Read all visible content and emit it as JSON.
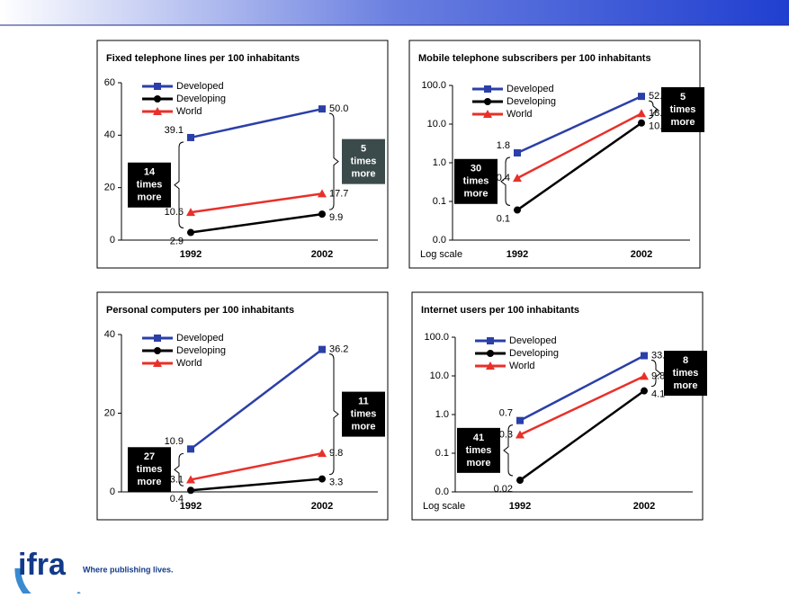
{
  "chart_data": [
    {
      "type": "line",
      "title": "Fixed telephone lines per 100 inhabitants",
      "categories": [
        "1992",
        "2002"
      ],
      "series": [
        {
          "name": "Developed",
          "color": "#2b3fa8",
          "marker": "square",
          "values": [
            39.1,
            50.0
          ],
          "value_labels": [
            "39.1",
            "50.0"
          ]
        },
        {
          "name": "Developing",
          "color": "#000000",
          "marker": "circle",
          "values": [
            2.9,
            9.9
          ],
          "value_labels": [
            "2.9",
            "9.9"
          ]
        },
        {
          "name": "World",
          "color": "#e8302a",
          "marker": "triangle",
          "values": [
            10.6,
            17.7
          ],
          "value_labels": [
            "10.6",
            "17.7"
          ]
        }
      ],
      "ylim": [
        0,
        60
      ],
      "yticks": [
        0,
        20,
        40,
        60
      ],
      "log_scale": false,
      "annotations": [
        {
          "lines": [
            "14",
            "times",
            "more"
          ],
          "color": "#000000"
        },
        {
          "lines": [
            "5",
            "times",
            "more"
          ],
          "color": "#3b4a4a"
        }
      ]
    },
    {
      "type": "line",
      "title": "Mobile telephone subscribers per 100 inhabitants",
      "categories": [
        "1992",
        "2002"
      ],
      "series": [
        {
          "name": "Developed",
          "color": "#2b3fa8",
          "marker": "square",
          "values": [
            1.8,
            52.2
          ],
          "value_labels": [
            "1.8",
            "52.2"
          ]
        },
        {
          "name": "Developing",
          "color": "#000000",
          "marker": "circle",
          "values": [
            0.06,
            10.7
          ],
          "value_labels": [
            "0.1",
            "10.7"
          ]
        },
        {
          "name": "World",
          "color": "#e8302a",
          "marker": "triangle",
          "values": [
            0.4,
            18.7
          ],
          "value_labels": [
            "0.4",
            "18.7"
          ]
        }
      ],
      "ylim": [
        0.01,
        100
      ],
      "yticks": [
        {
          "value": 0.01,
          "label": "0.0"
        },
        0.1,
        {
          "value": 1,
          "label": "1.0"
        },
        {
          "value": 10,
          "label": "10.0"
        },
        {
          "value": 100,
          "label": "100.0"
        }
      ],
      "log_scale": true,
      "scale_note": "Log scale",
      "annotations": [
        {
          "lines": [
            "30",
            "times",
            "more"
          ],
          "color": "#000000"
        },
        {
          "lines": [
            "5",
            "times",
            "more"
          ],
          "color": "#000000"
        }
      ]
    },
    {
      "type": "line",
      "title": "Personal computers per 100 inhabitants",
      "categories": [
        "1992",
        "2002"
      ],
      "series": [
        {
          "name": "Developed",
          "color": "#2b3fa8",
          "marker": "square",
          "values": [
            10.9,
            36.2
          ],
          "value_labels": [
            "10.9",
            "36.2"
          ]
        },
        {
          "name": "Developing",
          "color": "#000000",
          "marker": "circle",
          "values": [
            0.4,
            3.3
          ],
          "value_labels": [
            "0.4",
            "3.3"
          ]
        },
        {
          "name": "World",
          "color": "#e8302a",
          "marker": "triangle",
          "values": [
            3.1,
            9.8
          ],
          "value_labels": [
            "3.1",
            "9.8"
          ]
        }
      ],
      "ylim": [
        0,
        40
      ],
      "yticks": [
        0,
        20,
        40
      ],
      "log_scale": false,
      "annotations": [
        {
          "lines": [
            "27",
            "times",
            "more"
          ],
          "color": "#000000"
        },
        {
          "lines": [
            "11",
            "times",
            "more"
          ],
          "color": "#000000"
        }
      ]
    },
    {
      "type": "line",
      "title": "Internet users per 100 inhabitants",
      "categories": [
        "1992",
        "2002"
      ],
      "series": [
        {
          "name": "Developed",
          "color": "#2b3fa8",
          "marker": "square",
          "values": [
            0.7,
            33.3
          ],
          "value_labels": [
            "0.7",
            "33.3"
          ]
        },
        {
          "name": "Developing",
          "color": "#000000",
          "marker": "circle",
          "values": [
            0.02,
            4.1
          ],
          "value_labels": [
            "0.02",
            "4.1"
          ]
        },
        {
          "name": "World",
          "color": "#e8302a",
          "marker": "triangle",
          "values": [
            0.3,
            9.8
          ],
          "value_labels": [
            "0.3",
            "9.8"
          ]
        }
      ],
      "ylim": [
        0.01,
        100
      ],
      "yticks": [
        {
          "value": 0.01,
          "label": "0.0"
        },
        0.1,
        {
          "value": 1,
          "label": "1.0"
        },
        {
          "value": 10,
          "label": "10.0"
        },
        {
          "value": 100,
          "label": "100.0"
        }
      ],
      "log_scale": true,
      "scale_note": "Log scale",
      "annotations": [
        {
          "lines": [
            "41",
            "times",
            "more"
          ],
          "color": "#000000"
        },
        {
          "lines": [
            "8",
            "times",
            "more"
          ],
          "color": "#000000"
        }
      ]
    }
  ],
  "logo": {
    "name": "ifra",
    "tagline": "Where publishing lives."
  }
}
